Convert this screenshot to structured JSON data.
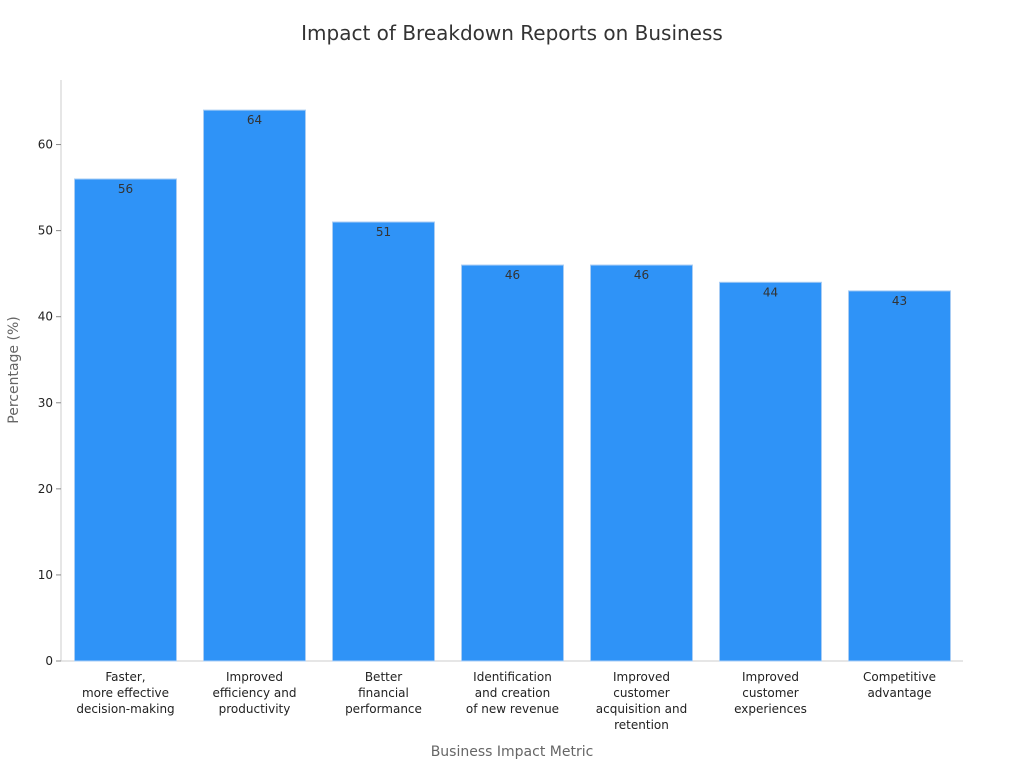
{
  "chart_data": {
    "type": "bar",
    "title": "Impact of Breakdown Reports on Business",
    "xlabel": "Business Impact Metric",
    "ylabel": "Percentage (%)",
    "ylim": [
      0,
      67.5
    ],
    "yticks": [
      0,
      10,
      20,
      30,
      40,
      50,
      60
    ],
    "categories": [
      [
        "Faster,",
        "more effective",
        "decision-making"
      ],
      [
        "Improved",
        "efficiency and",
        "productivity"
      ],
      [
        "Better",
        "financial",
        "performance"
      ],
      [
        "Identification",
        "and creation",
        "of new revenue"
      ],
      [
        "Improved",
        "customer",
        "acquisition and",
        "retention"
      ],
      [
        "Improved",
        "customer",
        "experiences"
      ],
      [
        "Competitive",
        "advantage"
      ]
    ],
    "values": [
      56,
      64,
      51,
      46,
      46,
      44,
      43
    ],
    "grid": false,
    "legend": "none",
    "colors": {
      "bar": "#2f93f7",
      "bar_edge": "#a9cdf4"
    }
  }
}
